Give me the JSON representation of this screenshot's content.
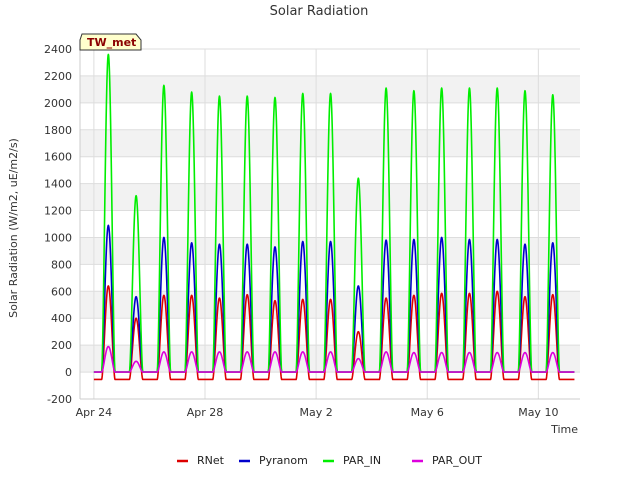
{
  "chart_data": {
    "type": "line",
    "title": "Solar Radiation",
    "xlabel": "Time",
    "ylabel": "Solar Radiation (W/m2, uE/m2/s)",
    "site_tag": "TW_met",
    "ylim": [
      -200,
      2400
    ],
    "yticks": [
      -200,
      0,
      200,
      400,
      600,
      800,
      1000,
      1200,
      1400,
      1600,
      1800,
      2000,
      2200,
      2400
    ],
    "xlim": [
      -0.5,
      17.5
    ],
    "xticks": [
      {
        "day": 0,
        "label": "Apr 24"
      },
      {
        "day": 4,
        "label": "Apr 28"
      },
      {
        "day": 8,
        "label": "May 2"
      },
      {
        "day": 12,
        "label": "May 6"
      },
      {
        "day": 16,
        "label": "May 10"
      }
    ],
    "x_unit": "days since Apr 24",
    "grid": true,
    "legend": "bottom",
    "days": [
      0,
      1,
      2,
      3,
      4,
      5,
      6,
      7,
      8,
      9,
      10,
      11,
      12,
      13,
      14,
      15,
      16,
      17
    ],
    "series": [
      {
        "name": "RNet",
        "color": "#dd0000",
        "night": -55,
        "daily_peak": [
          640,
          400,
          570,
          570,
          550,
          575,
          530,
          540,
          540,
          300,
          550,
          570,
          585,
          585,
          600,
          560,
          575,
          0
        ]
      },
      {
        "name": "Pyranom",
        "color": "#0000cc",
        "night": 0,
        "daily_peak": [
          1090,
          560,
          1000,
          960,
          950,
          950,
          930,
          970,
          970,
          640,
          980,
          985,
          1000,
          985,
          985,
          950,
          960,
          0
        ]
      },
      {
        "name": "PAR_IN",
        "color": "#00ee00",
        "night": 0,
        "daily_peak": [
          2360,
          1310,
          2130,
          2080,
          2050,
          2050,
          2040,
          2070,
          2070,
          1440,
          2110,
          2090,
          2110,
          2110,
          2110,
          2090,
          2060,
          0
        ]
      },
      {
        "name": "PAR_OUT",
        "color": "#dd00dd",
        "night": 0,
        "daily_peak": [
          190,
          80,
          150,
          150,
          150,
          150,
          150,
          150,
          150,
          100,
          150,
          145,
          145,
          145,
          145,
          145,
          145,
          0
        ]
      }
    ]
  }
}
